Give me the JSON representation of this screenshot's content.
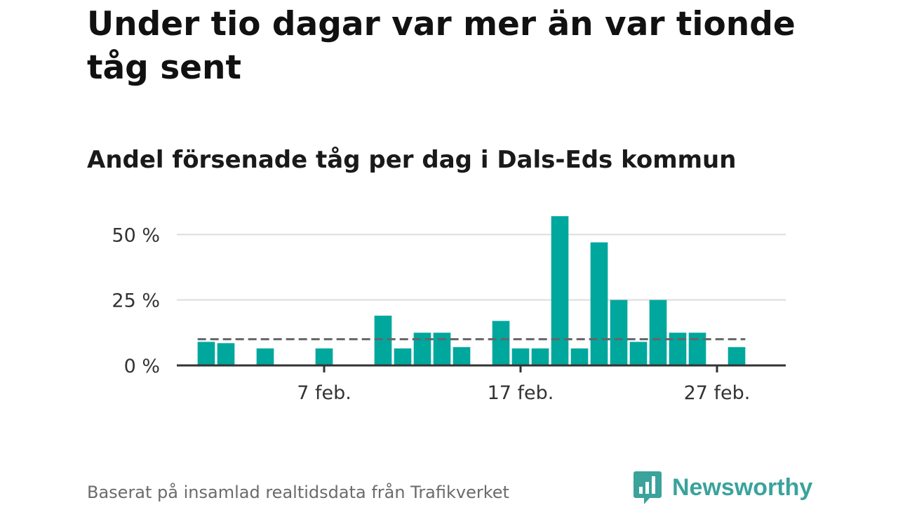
{
  "header": {
    "title": "Under tio dagar var mer än var tionde tåg sent",
    "subtitle": "Andel försenade tåg per dag i Dals-Eds kommun"
  },
  "footer": {
    "source": "Baserat på insamlad realtidsdata från Trafikverket",
    "brand": "Newsworthy"
  },
  "colors": {
    "bar": "#00a79d",
    "reference_line": "#666666",
    "grid": "#dddddd",
    "axis": "#333333",
    "brand": "#3aa39b"
  },
  "icons": {
    "brand_logo": "bar-chart-speech-bubble-icon"
  },
  "chart_data": {
    "type": "bar",
    "title": "Andel försenade tåg per dag i Dals-Eds kommun",
    "x_unit": "day of February",
    "x": [
      1,
      2,
      4,
      7,
      10,
      11,
      12,
      13,
      14,
      16,
      17,
      18,
      19,
      20,
      21,
      22,
      23,
      24,
      25,
      26,
      28
    ],
    "values": [
      9,
      8.5,
      6.5,
      6.5,
      19,
      6.5,
      12.5,
      12.5,
      7,
      17,
      6.5,
      6.5,
      57,
      6.5,
      47,
      25,
      9,
      25,
      12.5,
      12.5,
      7
    ],
    "x_ticks": [
      {
        "x": 7,
        "label": "7 feb."
      },
      {
        "x": 17,
        "label": "17 feb."
      },
      {
        "x": 27,
        "label": "27 feb."
      }
    ],
    "y_ticks": [
      {
        "value": 0,
        "label": "0 %"
      },
      {
        "value": 25,
        "label": "25 %"
      },
      {
        "value": 50,
        "label": "50 %"
      }
    ],
    "reference_line": {
      "value": 10,
      "style": "dashed"
    },
    "xlim": [
      -0.5,
      30.5
    ],
    "ylim": [
      0,
      60
    ],
    "grid": true
  }
}
